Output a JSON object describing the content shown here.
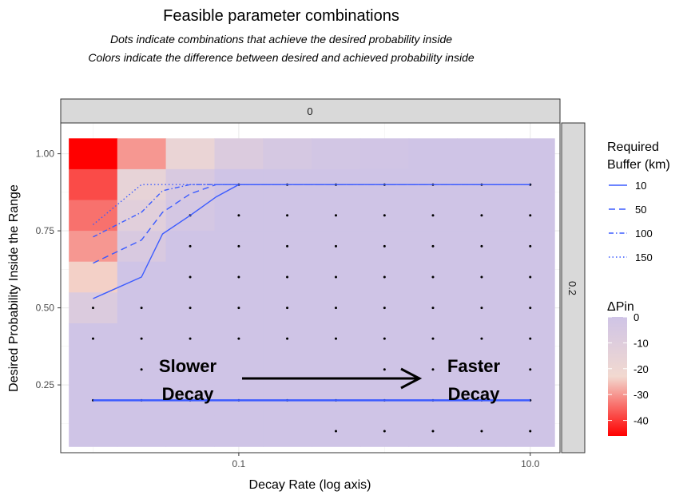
{
  "chart_data": {
    "type": "heatmap",
    "title": "Feasible parameter combinations",
    "subtitle_lines": [
      "Dots indicate combinations that achieve the desired probability inside",
      "Colors indicate the difference between desired and achieved probability inside"
    ],
    "xlabel": "Decay Rate (log axis)",
    "ylabel": "Desired Probability Inside the Range",
    "x_scale": "log10",
    "xlim": [
      0.006,
      16
    ],
    "ylim": [
      0.03,
      1.1
    ],
    "x_ticks": [
      {
        "v": 0.1,
        "label": "0.1"
      },
      {
        "v": 10,
        "label": "10.0"
      }
    ],
    "y_ticks": [
      {
        "v": 0.25,
        "label": "0.25"
      },
      {
        "v": 0.5,
        "label": "0.50"
      },
      {
        "v": 0.75,
        "label": "0.75"
      },
      {
        "v": 1.0,
        "label": "1.00"
      }
    ],
    "grid": true,
    "facet_top_label": "0",
    "facet_right_label": "0.2",
    "x_levels": [
      0.01,
      0.0215,
      0.0464,
      0.1,
      0.215,
      0.464,
      1,
      2.15,
      4.64,
      10
    ],
    "y_levels": [
      0.1,
      0.2,
      0.3,
      0.4,
      0.5,
      0.6,
      0.7,
      0.8,
      0.9,
      1.0
    ],
    "tiles_delta_pin": [
      [
        -46,
        -30,
        -18,
        -8,
        -4,
        -2,
        -1,
        0,
        0,
        0
      ],
      [
        -38,
        -16,
        -6,
        0,
        0,
        0,
        0,
        0,
        0,
        0
      ],
      [
        -34,
        -12,
        -3,
        0,
        0,
        0,
        0,
        0,
        0,
        0
      ],
      [
        -30,
        -6,
        0,
        0,
        0,
        0,
        0,
        0,
        0,
        0
      ],
      [
        -24,
        0,
        0,
        0,
        0,
        0,
        0,
        0,
        0,
        0
      ],
      [
        -8,
        0,
        0,
        0,
        0,
        0,
        0,
        0,
        0,
        0
      ],
      [
        0,
        0,
        0,
        0,
        0,
        0,
        0,
        0,
        0,
        0
      ],
      [
        0,
        0,
        0,
        0,
        0,
        0,
        0,
        0,
        0,
        0
      ],
      [
        0,
        0,
        0,
        0,
        0,
        0,
        0,
        0,
        0,
        0
      ],
      [
        0,
        0,
        0,
        0,
        0,
        0,
        0,
        0,
        0,
        0
      ]
    ],
    "dots": [
      [
        0.1,
        4.64
      ],
      [
        0.1,
        10
      ],
      [
        0.1,
        2.15
      ],
      [
        0.1,
        1
      ],
      [
        0.1,
        0.464
      ],
      [
        0.2,
        0.01
      ],
      [
        0.2,
        0.0215
      ],
      [
        0.2,
        0.0464
      ],
      [
        0.2,
        0.1
      ],
      [
        0.2,
        0.215
      ],
      [
        0.2,
        0.464
      ],
      [
        0.2,
        1
      ],
      [
        0.2,
        2.15
      ],
      [
        0.2,
        4.64
      ],
      [
        0.2,
        10
      ],
      [
        0.3,
        0.0215
      ],
      [
        0.3,
        0.0464
      ],
      [
        0.3,
        1
      ],
      [
        0.3,
        2.15
      ],
      [
        0.3,
        4.64
      ],
      [
        0.3,
        10
      ],
      [
        0.4,
        0.01
      ],
      [
        0.4,
        0.0215
      ],
      [
        0.4,
        0.0464
      ],
      [
        0.4,
        0.1
      ],
      [
        0.4,
        0.215
      ],
      [
        0.4,
        0.464
      ],
      [
        0.4,
        1
      ],
      [
        0.4,
        2.15
      ],
      [
        0.4,
        4.64
      ],
      [
        0.4,
        10
      ],
      [
        0.5,
        0.01
      ],
      [
        0.5,
        0.0215
      ],
      [
        0.5,
        0.0464
      ],
      [
        0.5,
        0.1
      ],
      [
        0.5,
        0.215
      ],
      [
        0.5,
        0.464
      ],
      [
        0.5,
        1
      ],
      [
        0.5,
        2.15
      ],
      [
        0.5,
        4.64
      ],
      [
        0.5,
        10
      ],
      [
        0.6,
        0.0464
      ],
      [
        0.6,
        0.1
      ],
      [
        0.6,
        0.215
      ],
      [
        0.6,
        0.464
      ],
      [
        0.6,
        1
      ],
      [
        0.6,
        2.15
      ],
      [
        0.6,
        4.64
      ],
      [
        0.6,
        10
      ],
      [
        0.7,
        0.0464
      ],
      [
        0.7,
        0.1
      ],
      [
        0.7,
        0.215
      ],
      [
        0.7,
        0.464
      ],
      [
        0.7,
        1
      ],
      [
        0.7,
        2.15
      ],
      [
        0.7,
        4.64
      ],
      [
        0.7,
        10
      ],
      [
        0.8,
        0.0464
      ],
      [
        0.8,
        0.1
      ],
      [
        0.8,
        0.215
      ],
      [
        0.8,
        0.464
      ],
      [
        0.8,
        1
      ],
      [
        0.8,
        2.15
      ],
      [
        0.8,
        4.64
      ],
      [
        0.8,
        10
      ],
      [
        0.9,
        0.1
      ],
      [
        0.9,
        0.215
      ],
      [
        0.9,
        0.464
      ],
      [
        0.9,
        1
      ],
      [
        0.9,
        2.15
      ],
      [
        0.9,
        4.64
      ],
      [
        0.9,
        10
      ]
    ],
    "series": [
      {
        "name": "10",
        "dash": "",
        "x": [
          0.01,
          0.0215,
          0.03,
          0.0464,
          0.07,
          0.1,
          0.215,
          0.464,
          1,
          2.15,
          4.64,
          10
        ],
        "y": [
          0.53,
          0.6,
          0.74,
          0.8,
          0.86,
          0.9,
          0.9,
          0.9,
          0.9,
          0.9,
          0.9,
          0.9
        ]
      },
      {
        "name": "50",
        "dash": "8,5",
        "x": [
          0.01,
          0.0215,
          0.03,
          0.0464,
          0.07,
          0.1,
          0.215,
          0.464,
          1,
          2.15,
          4.64,
          10
        ],
        "y": [
          0.645,
          0.72,
          0.81,
          0.87,
          0.9,
          0.9,
          0.9,
          0.9,
          0.9,
          0.9,
          0.9,
          0.9
        ]
      },
      {
        "name": "100",
        "dash": "6,3,1.5,3",
        "x": [
          0.01,
          0.0215,
          0.03,
          0.0464,
          0.07,
          0.1,
          0.215,
          0.464,
          1,
          2.15,
          4.64,
          10
        ],
        "y": [
          0.73,
          0.81,
          0.88,
          0.9,
          0.9,
          0.9,
          0.9,
          0.9,
          0.9,
          0.9,
          0.9,
          0.9
        ]
      },
      {
        "name": "150",
        "dash": "1.5,3",
        "x": [
          0.01,
          0.0215,
          0.03,
          0.0464,
          0.07,
          0.1,
          0.215,
          0.464,
          1,
          2.15,
          4.64,
          10
        ],
        "y": [
          0.77,
          0.9,
          0.9,
          0.9,
          0.9,
          0.9,
          0.9,
          0.9,
          0.9,
          0.9,
          0.9,
          0.9
        ]
      }
    ],
    "flat_line_y": 0.2,
    "line_color": "#3b5bff",
    "legend_buffer": {
      "title_lines": [
        "Required",
        "Buffer (km)"
      ],
      "entries": [
        "10",
        "50",
        "100",
        "150"
      ]
    },
    "legend_fill": {
      "title": "ΔPin",
      "min": -46,
      "max": 0,
      "ticks": [
        0,
        -10,
        -20,
        -30,
        -40
      ],
      "low_color": "#ff0000",
      "mid_color": "#f2d9d0",
      "high_color": "#cfc4e6"
    },
    "annotations": {
      "left_lines": [
        "Slower",
        "Decay"
      ],
      "right_lines": [
        "Faster",
        "Decay"
      ]
    }
  }
}
